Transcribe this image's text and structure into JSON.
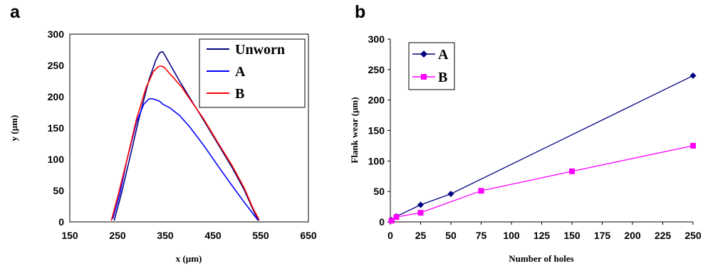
{
  "chart_data": [
    {
      "panel_label": "a",
      "type": "line",
      "xlabel": "x (µm)",
      "ylabel": "y (µm)",
      "xlim": [
        150,
        650
      ],
      "ylim": [
        0,
        300
      ],
      "xticks": [
        "150",
        "250",
        "350",
        "450",
        "550",
        "650"
      ],
      "yticks": [
        "0",
        "50",
        "100",
        "150",
        "200",
        "250",
        "300"
      ],
      "grid": false,
      "legend_position": "top-right",
      "series": [
        {
          "name": "Unworn",
          "color": "#000080",
          "x": [
            243,
            258,
            275,
            295,
            315,
            330,
            338,
            344,
            348,
            356,
            365,
            380,
            400,
            430,
            460,
            490,
            515,
            535,
            545
          ],
          "y": [
            2,
            45,
            100,
            165,
            225,
            258,
            270,
            272,
            268,
            257,
            245,
            225,
            200,
            163,
            125,
            87,
            52,
            18,
            2
          ]
        },
        {
          "name": "A",
          "color": "#0000ff",
          "x": [
            240,
            255,
            270,
            290,
            305,
            315,
            322,
            330,
            338,
            345,
            360,
            380,
            400,
            430,
            460,
            490,
            515,
            535,
            545
          ],
          "y": [
            5,
            45,
            100,
            160,
            188,
            196,
            197,
            195,
            193,
            188,
            182,
            170,
            153,
            123,
            90,
            58,
            32,
            12,
            2
          ]
        },
        {
          "name": "B",
          "color": "#ff0000",
          "x": [
            237,
            252,
            270,
            290,
            310,
            325,
            335,
            342,
            348,
            358,
            370,
            385,
            400,
            430,
            460,
            490,
            515,
            535,
            547
          ],
          "y": [
            2,
            45,
            100,
            165,
            215,
            240,
            248,
            249,
            247,
            238,
            228,
            215,
            198,
            165,
            127,
            90,
            55,
            20,
            3
          ]
        }
      ]
    },
    {
      "panel_label": "b",
      "type": "line",
      "xlabel": "Number of holes",
      "ylabel": "Flank wear (µm)",
      "xlim": [
        0,
        250
      ],
      "ylim": [
        0,
        300
      ],
      "xticks": [
        "0",
        "25",
        "50",
        "75",
        "100",
        "125",
        "150",
        "175",
        "200",
        "225",
        "250"
      ],
      "yticks": [
        "0",
        "50",
        "100",
        "150",
        "200",
        "250",
        "300"
      ],
      "grid": false,
      "legend_position": "top-left",
      "series": [
        {
          "name": "A",
          "color": "#000080",
          "marker": "diamond",
          "x": [
            1,
            5,
            25,
            50,
            250
          ],
          "y": [
            3,
            9,
            28,
            46,
            240
          ]
        },
        {
          "name": "B",
          "color": "#ff00ff",
          "marker": "square",
          "x": [
            1,
            5,
            25,
            75,
            150,
            250
          ],
          "y": [
            2,
            8,
            15,
            51,
            83,
            125
          ]
        }
      ]
    }
  ]
}
